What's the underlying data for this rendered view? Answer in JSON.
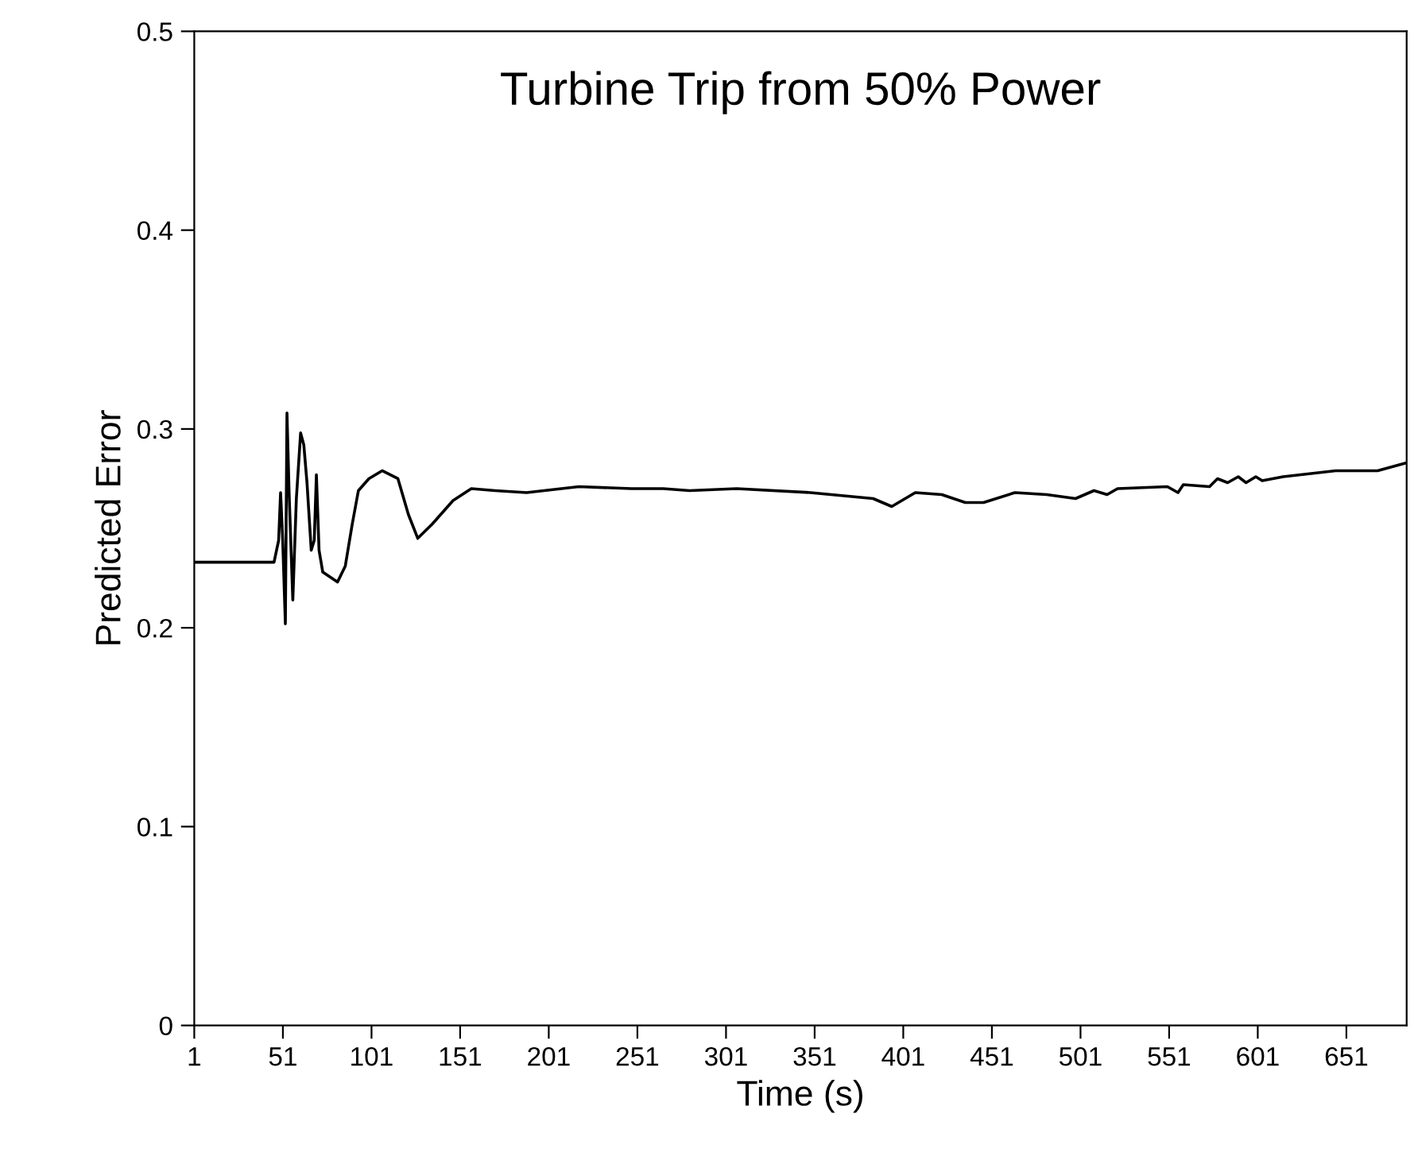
{
  "chart_data": {
    "type": "line",
    "title": "Turbine Trip from 50% Power",
    "xlabel": "Time (s)",
    "ylabel": "Predicted Error",
    "xlim": [
      1,
      685
    ],
    "xticks": [
      1,
      51,
      101,
      151,
      201,
      251,
      301,
      351,
      401,
      451,
      501,
      551,
      601,
      651
    ],
    "ylim": [
      0,
      0.5
    ],
    "yticks": [
      0,
      0.1,
      0.2,
      0.3,
      0.4,
      0.5
    ],
    "grid": false,
    "marker": "none",
    "line_style": "solid",
    "series": [
      {
        "color": "#000000",
        "x": [
          1,
          46,
          48.6,
          49.7,
          50.9,
          52.4,
          53.3,
          54.5,
          56.6,
          58.6,
          61,
          62.8,
          64.6,
          67,
          68.7,
          69.9,
          71.4,
          73.5,
          81.8,
          86.2,
          90.1,
          93.6,
          99.5,
          107,
          115.9,
          121.8,
          127.1,
          135.1,
          147,
          157.3,
          170.7,
          188.5,
          218,
          247.7,
          265.5,
          280.4,
          307,
          348.5,
          384,
          394.5,
          407.8,
          422.7,
          436,
          446.3,
          464,
          481.9,
          498.2,
          508.6,
          516,
          521.9,
          550,
          556,
          559,
          573.8,
          578.3,
          584,
          590,
          594.4,
          599.9,
          603.5,
          615.3,
          644.9,
          668.6,
          685
        ],
        "values": [
          0.233,
          0.233,
          0.244,
          0.268,
          0.244,
          0.202,
          0.308,
          0.268,
          0.214,
          0.265,
          0.298,
          0.292,
          0.273,
          0.239,
          0.244,
          0.277,
          0.239,
          0.228,
          0.223,
          0.231,
          0.252,
          0.269,
          0.275,
          0.279,
          0.275,
          0.257,
          0.245,
          0.252,
          0.264,
          0.27,
          0.269,
          0.268,
          0.271,
          0.27,
          0.27,
          0.269,
          0.27,
          0.268,
          0.265,
          0.261,
          0.268,
          0.267,
          0.263,
          0.263,
          0.268,
          0.267,
          0.265,
          0.269,
          0.267,
          0.27,
          0.271,
          0.268,
          0.272,
          0.271,
          0.275,
          0.273,
          0.276,
          0.273,
          0.276,
          0.274,
          0.276,
          0.279,
          0.279,
          0.283
        ]
      }
    ]
  }
}
